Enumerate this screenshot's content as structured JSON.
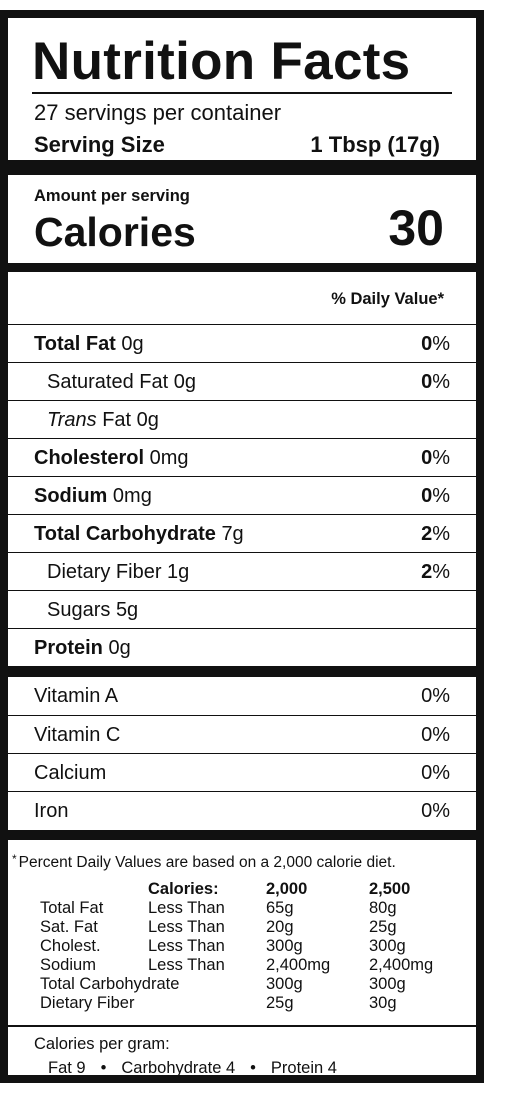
{
  "label": {
    "title": "Nutrition Facts",
    "servings_per_container": "27 servings per container",
    "serving_size_label": "Serving Size",
    "serving_size_value": "1 Tbsp (17g)",
    "amount_per_serving": "Amount per serving",
    "calories_label": "Calories",
    "calories_value": "30",
    "daily_value_header": "% Daily Value*"
  },
  "nutrients": [
    {
      "name": "Total Fat",
      "amount": "0g",
      "pct": "0",
      "unit": "%"
    },
    {
      "name": "Saturated Fat",
      "amount": "0g",
      "pct": "0",
      "unit": "%"
    },
    {
      "name": "Trans",
      "name_rest": "Fat",
      "amount": "0g",
      "pct": "",
      "unit": ""
    },
    {
      "name": "Cholesterol",
      "amount": "0mg",
      "pct": "0",
      "unit": "%"
    },
    {
      "name": "Sodium",
      "amount": "0mg",
      "pct": "0",
      "unit": "%"
    },
    {
      "name": "Total Carbohydrate",
      "amount": "7g",
      "pct": "2",
      "unit": "%"
    },
    {
      "name": "Dietary Fiber",
      "amount": "1g",
      "pct": "2",
      "unit": "%"
    },
    {
      "name": "Sugars",
      "amount": "5g",
      "pct": "",
      "unit": ""
    },
    {
      "name": "Protein",
      "amount": "0g",
      "pct": "",
      "unit": ""
    }
  ],
  "vitamins": [
    {
      "name": "Vitamin A",
      "pct": "0%"
    },
    {
      "name": "Vitamin C",
      "pct": "0%"
    },
    {
      "name": "Calcium",
      "pct": "0%"
    },
    {
      "name": "Iron",
      "pct": "0%"
    }
  ],
  "footnote": {
    "asterisk": "*",
    "note": "Percent Daily Values are based on a 2,000 calorie diet.",
    "table_header": [
      "",
      "Calories:",
      "2,000",
      "2,500"
    ],
    "table_rows": [
      [
        "Total Fat",
        "Less Than",
        "65g",
        "80g"
      ],
      [
        "Sat. Fat",
        "Less Than",
        "20g",
        "25g"
      ],
      [
        "Cholest.",
        "Less Than",
        "300g",
        "300g"
      ],
      [
        "Sodium",
        "Less Than",
        "2,400mg",
        "2,400mg"
      ],
      [
        "Total Carbohydrate",
        "",
        "300g",
        "300g"
      ],
      [
        "Dietary Fiber",
        "",
        "25g",
        "30g"
      ]
    ],
    "calories_per_gram_label": "Calories per gram:",
    "cpg_fat": "Fat 9",
    "cpg_carb": "Carbohydrate 4",
    "cpg_protein": "Protein 4",
    "bullet": "•"
  }
}
